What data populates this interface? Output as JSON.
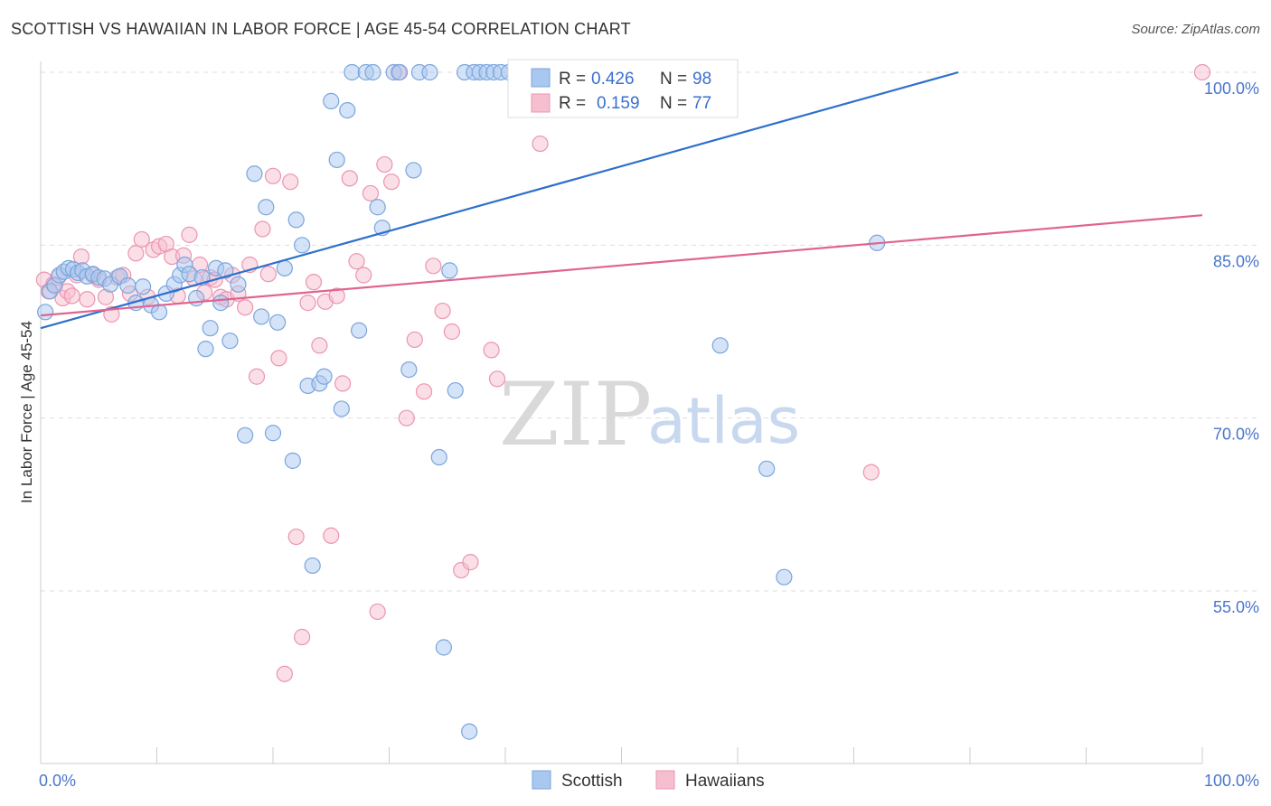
{
  "title": "SCOTTISH VS HAWAIIAN IN LABOR FORCE | AGE 45-54 CORRELATION CHART",
  "source": "Source: ZipAtlas.com",
  "watermark": {
    "zip": "ZIP",
    "atlas": "atlas"
  },
  "colors": {
    "scottish_fill": "#a9c8ef",
    "scottish_stroke": "#7aa5dd",
    "scottish_line": "#2e6fcc",
    "hawaiian_fill": "#f6bfd0",
    "hawaiian_stroke": "#ec94b2",
    "hawaiian_line": "#e0648f",
    "tick_text": "#4a76c9",
    "grid": "#dddddd"
  },
  "chart_data": {
    "type": "scatter",
    "xlabel": "",
    "ylabel": "In Labor Force | Age 45-54",
    "xlim": [
      0,
      100
    ],
    "ylim": [
      42,
      102
    ],
    "x_tick_labels": [
      "0.0%",
      "100.0%"
    ],
    "y_ticks": [
      55,
      70,
      85,
      100
    ],
    "y_tick_labels": [
      "55.0%",
      "70.0%",
      "85.0%",
      "100.0%"
    ],
    "grid": true,
    "legend_position": "top-center",
    "legend": [
      {
        "name": "Scottish",
        "R_label": "R =",
        "R": "0.426",
        "N_label": "N =",
        "N": "98"
      },
      {
        "name": "Hawaiians",
        "R_label": "R =",
        "R": "0.159",
        "N_label": "N =",
        "N": "77"
      }
    ],
    "series": [
      {
        "name": "Scottish",
        "trend": {
          "x": [
            0,
            79
          ],
          "y": [
            77.8,
            100.0
          ]
        },
        "points": [
          [
            0.4,
            79.2
          ],
          [
            0.8,
            81.0
          ],
          [
            1.2,
            81.5
          ],
          [
            1.6,
            82.4
          ],
          [
            2.0,
            82.7
          ],
          [
            2.4,
            83.0
          ],
          [
            2.8,
            82.9
          ],
          [
            3.2,
            82.6
          ],
          [
            3.6,
            82.8
          ],
          [
            4.0,
            82.3
          ],
          [
            4.5,
            82.5
          ],
          [
            5.0,
            82.2
          ],
          [
            5.5,
            82.1
          ],
          [
            6.0,
            81.6
          ],
          [
            6.8,
            82.3
          ],
          [
            7.5,
            81.5
          ],
          [
            8.2,
            80.0
          ],
          [
            8.8,
            81.4
          ],
          [
            9.5,
            79.8
          ],
          [
            10.2,
            79.2
          ],
          [
            10.8,
            80.8
          ],
          [
            11.5,
            81.6
          ],
          [
            12.0,
            82.4
          ],
          [
            12.4,
            83.3
          ],
          [
            12.8,
            82.5
          ],
          [
            13.4,
            80.4
          ],
          [
            13.9,
            82.2
          ],
          [
            14.2,
            76.0
          ],
          [
            14.6,
            77.8
          ],
          [
            15.1,
            83.0
          ],
          [
            15.5,
            80.0
          ],
          [
            15.9,
            82.8
          ],
          [
            16.3,
            76.7
          ],
          [
            17.0,
            81.6
          ],
          [
            17.6,
            68.5
          ],
          [
            18.4,
            91.2
          ],
          [
            19.0,
            78.8
          ],
          [
            19.4,
            88.3
          ],
          [
            20.0,
            68.7
          ],
          [
            20.4,
            78.3
          ],
          [
            21.0,
            83.0
          ],
          [
            21.7,
            66.3
          ],
          [
            22.0,
            87.2
          ],
          [
            22.5,
            85.0
          ],
          [
            23.0,
            72.8
          ],
          [
            23.4,
            57.2
          ],
          [
            24.0,
            73.0
          ],
          [
            24.4,
            73.6
          ],
          [
            25.0,
            97.5
          ],
          [
            25.5,
            92.4
          ],
          [
            25.9,
            70.8
          ],
          [
            26.4,
            96.7
          ],
          [
            26.8,
            100.0
          ],
          [
            27.4,
            77.6
          ],
          [
            28.0,
            100.0
          ],
          [
            28.6,
            100.0
          ],
          [
            29.0,
            88.3
          ],
          [
            29.4,
            86.5
          ],
          [
            30.4,
            100.0
          ],
          [
            30.9,
            100.0
          ],
          [
            31.7,
            74.2
          ],
          [
            32.1,
            91.5
          ],
          [
            32.6,
            100.0
          ],
          [
            33.5,
            100.0
          ],
          [
            34.3,
            66.6
          ],
          [
            34.7,
            50.1
          ],
          [
            35.2,
            82.8
          ],
          [
            35.7,
            72.4
          ],
          [
            36.5,
            100.0
          ],
          [
            36.9,
            42.8
          ],
          [
            37.3,
            100.0
          ],
          [
            37.8,
            100.0
          ],
          [
            38.4,
            100.0
          ],
          [
            39.0,
            100.0
          ],
          [
            39.6,
            100.0
          ],
          [
            40.3,
            100.0
          ],
          [
            41.7,
            100.0
          ],
          [
            42.4,
            100.0
          ],
          [
            43.1,
            100.0
          ],
          [
            43.8,
            100.0
          ],
          [
            44.5,
            100.0
          ],
          [
            45.2,
            100.0
          ],
          [
            45.9,
            100.0
          ],
          [
            46.6,
            100.0
          ],
          [
            47.3,
            100.0
          ],
          [
            48.0,
            100.0
          ],
          [
            49.2,
            100.0
          ],
          [
            50.0,
            100.0
          ],
          [
            51.0,
            100.0
          ],
          [
            52.0,
            100.0
          ],
          [
            53.0,
            100.0
          ],
          [
            54.0,
            100.0
          ],
          [
            55.0,
            100.0
          ],
          [
            57.0,
            100.0
          ],
          [
            58.5,
            76.3
          ],
          [
            62.5,
            65.6
          ],
          [
            64.0,
            56.2
          ],
          [
            72.0,
            85.2
          ]
        ]
      },
      {
        "name": "Hawaiians",
        "trend": {
          "x": [
            0,
            100
          ],
          "y": [
            78.9,
            87.6
          ]
        },
        "points": [
          [
            0.3,
            82.0
          ],
          [
            0.7,
            81.0
          ],
          [
            1.1,
            81.6
          ],
          [
            1.5,
            82.2
          ],
          [
            1.9,
            80.4
          ],
          [
            2.3,
            81.0
          ],
          [
            2.7,
            80.6
          ],
          [
            3.1,
            82.4
          ],
          [
            3.5,
            84.0
          ],
          [
            4.0,
            80.3
          ],
          [
            4.5,
            82.4
          ],
          [
            5.0,
            82.0
          ],
          [
            5.6,
            80.5
          ],
          [
            6.1,
            79.0
          ],
          [
            6.6,
            82.2
          ],
          [
            7.1,
            82.4
          ],
          [
            7.7,
            80.8
          ],
          [
            8.2,
            84.3
          ],
          [
            8.7,
            85.5
          ],
          [
            9.2,
            80.5
          ],
          [
            9.7,
            84.6
          ],
          [
            10.2,
            84.9
          ],
          [
            10.8,
            85.1
          ],
          [
            11.3,
            84.0
          ],
          [
            11.8,
            80.6
          ],
          [
            12.3,
            84.1
          ],
          [
            12.8,
            85.9
          ],
          [
            13.2,
            82.1
          ],
          [
            13.7,
            83.3
          ],
          [
            14.1,
            80.9
          ],
          [
            14.6,
            82.2
          ],
          [
            15.0,
            82.0
          ],
          [
            15.5,
            80.5
          ],
          [
            16.0,
            80.3
          ],
          [
            16.5,
            82.4
          ],
          [
            17.0,
            80.8
          ],
          [
            17.6,
            79.6
          ],
          [
            18.0,
            83.3
          ],
          [
            18.6,
            73.6
          ],
          [
            19.1,
            86.4
          ],
          [
            19.6,
            82.5
          ],
          [
            20.0,
            91.0
          ],
          [
            20.5,
            75.2
          ],
          [
            21.0,
            47.8
          ],
          [
            21.5,
            90.5
          ],
          [
            22.0,
            59.7
          ],
          [
            22.5,
            51.0
          ],
          [
            23.0,
            80.0
          ],
          [
            23.5,
            81.8
          ],
          [
            24.0,
            76.3
          ],
          [
            24.5,
            80.1
          ],
          [
            25.0,
            59.8
          ],
          [
            25.5,
            80.6
          ],
          [
            26.0,
            73.0
          ],
          [
            26.6,
            90.8
          ],
          [
            27.2,
            83.6
          ],
          [
            27.8,
            82.4
          ],
          [
            28.4,
            89.5
          ],
          [
            29.0,
            53.2
          ],
          [
            29.6,
            92.0
          ],
          [
            30.2,
            90.5
          ],
          [
            30.8,
            100.0
          ],
          [
            31.5,
            70.0
          ],
          [
            32.2,
            76.8
          ],
          [
            33.0,
            72.3
          ],
          [
            33.8,
            83.2
          ],
          [
            34.6,
            79.3
          ],
          [
            35.4,
            77.5
          ],
          [
            36.2,
            56.8
          ],
          [
            37.0,
            57.5
          ],
          [
            38.8,
            75.9
          ],
          [
            39.3,
            73.4
          ],
          [
            43.0,
            93.8
          ],
          [
            46.0,
            100.0
          ],
          [
            59.0,
            100.0
          ],
          [
            71.5,
            65.3
          ],
          [
            100.0,
            100.0
          ]
        ]
      }
    ]
  }
}
